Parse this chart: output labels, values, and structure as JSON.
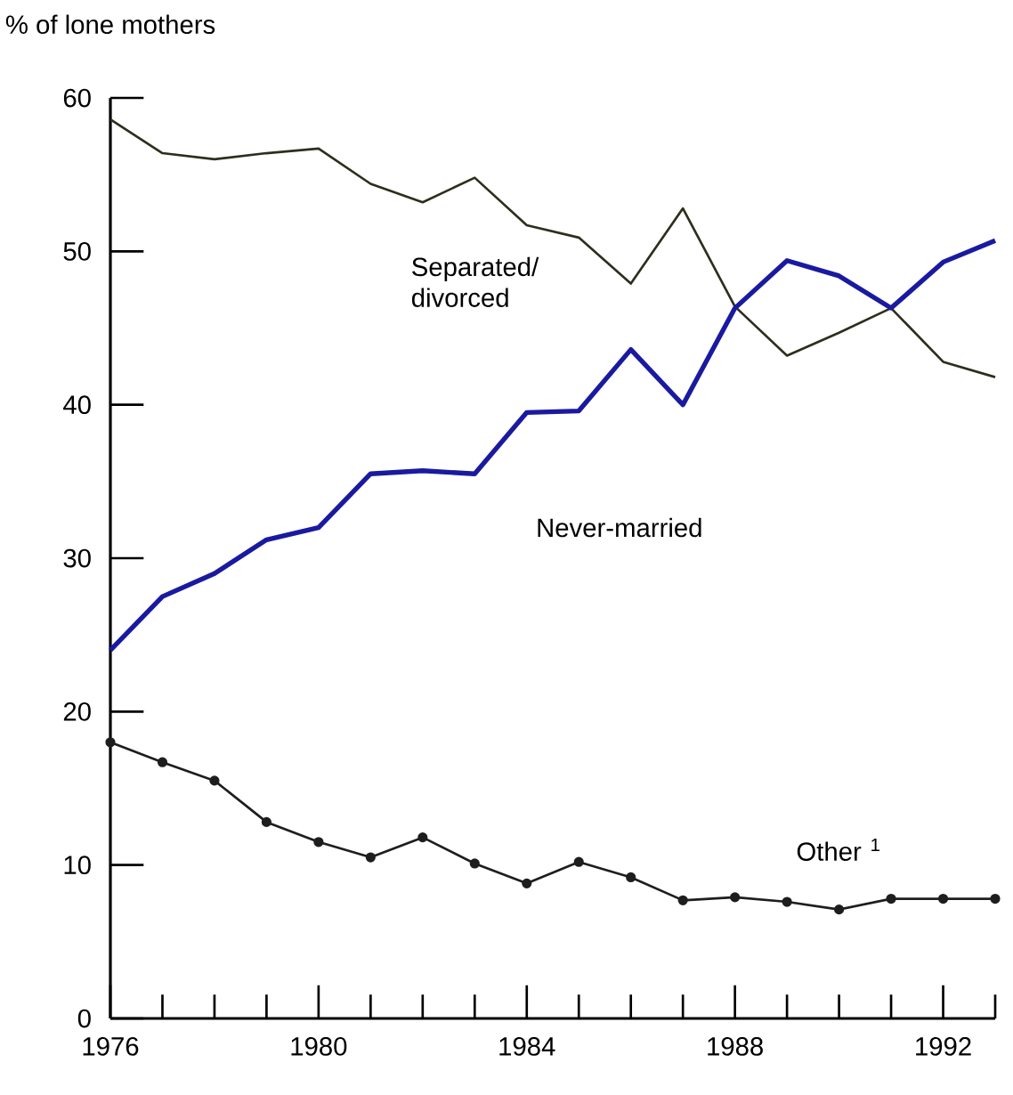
{
  "chart_data": {
    "type": "line",
    "ylabel": "% of lone mothers",
    "x": [
      1976,
      1977,
      1978,
      1979,
      1980,
      1981,
      1982,
      1983,
      1984,
      1985,
      1986,
      1987,
      1988,
      1989,
      1990,
      1991,
      1992,
      1993
    ],
    "series": [
      {
        "name": "Separated/ divorced",
        "color": "#2e2e1e",
        "marker": "none",
        "values": [
          58.6,
          56.4,
          56.0,
          56.4,
          56.7,
          54.4,
          53.2,
          54.8,
          51.7,
          50.9,
          47.9,
          52.8,
          46.4,
          43.2,
          44.7,
          46.3,
          42.8,
          41.8
        ]
      },
      {
        "name": "Never-married",
        "color": "#1a1aa0",
        "marker": "none",
        "values": [
          24.0,
          27.5,
          29.0,
          31.2,
          32.0,
          35.5,
          35.7,
          35.5,
          39.5,
          39.6,
          43.6,
          40.0,
          46.3,
          49.4,
          48.4,
          46.3,
          49.3,
          50.7
        ]
      },
      {
        "name": "Other $^{1}$",
        "color": "#1e1e1e",
        "marker": "circle",
        "values": [
          18.0,
          16.7,
          15.5,
          12.8,
          11.5,
          10.5,
          11.8,
          10.1,
          8.8,
          10.2,
          9.2,
          7.7,
          7.9,
          7.6,
          7.1,
          7.8,
          7.8,
          7.8
        ]
      }
    ],
    "xlim": [
      1976,
      1993
    ],
    "ylim": [
      0,
      60
    ],
    "xticks": [
      1976,
      {
        "value": 1977,
        "label": null
      },
      {
        "value": 1978,
        "label": null
      },
      {
        "value": 1979,
        "label": null
      },
      1980,
      {
        "value": 1981,
        "label": null
      },
      {
        "value": 1982,
        "label": null
      },
      {
        "value": 1983,
        "label": null
      },
      1984,
      {
        "value": 1985,
        "label": null
      },
      {
        "value": 1986,
        "label": null
      },
      {
        "value": 1987,
        "label": null
      },
      1988,
      {
        "value": 1989,
        "label": null
      },
      {
        "value": 1990,
        "label": null
      },
      {
        "value": 1991,
        "label": null
      },
      1992,
      {
        "value": 1993,
        "label": null
      }
    ],
    "yticks": [
      0,
      10,
      20,
      30,
      40,
      50,
      60
    ],
    "grid": false,
    "legend": false
  }
}
